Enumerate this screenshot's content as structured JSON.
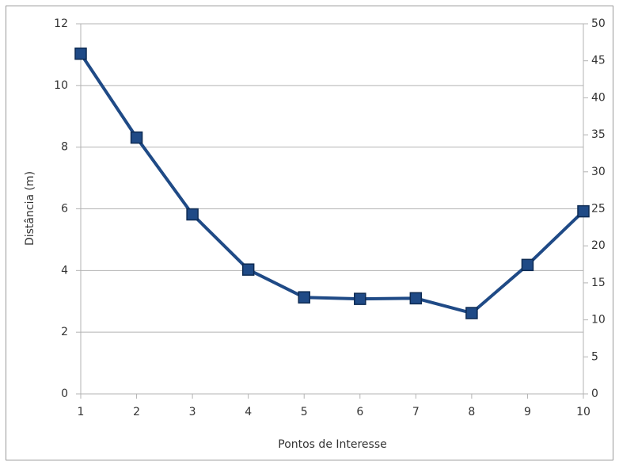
{
  "chart_data": {
    "type": "line",
    "x_label": "Pontos de Interesse",
    "y_label": "Distância (m)",
    "x": [
      1,
      2,
      3,
      4,
      5,
      6,
      7,
      8,
      9,
      10
    ],
    "series": [
      {
        "color": "#1f4a86",
        "values": [
          11.03,
          8.31,
          5.82,
          4.03,
          3.13,
          3.08,
          3.1,
          2.62,
          4.18,
          5.92
        ]
      }
    ],
    "xlim": [
      1,
      10
    ],
    "xticks": [
      1,
      2,
      3,
      4,
      5,
      6,
      7,
      8,
      9,
      10
    ],
    "ylim": [
      0,
      12
    ],
    "yticks": [
      0,
      2,
      4,
      6,
      8,
      10,
      12
    ],
    "y2lim": [
      0,
      50
    ],
    "y2ticks": [
      0,
      5,
      10,
      15,
      20,
      25,
      30,
      35,
      40,
      45,
      50
    ],
    "grid": true
  }
}
